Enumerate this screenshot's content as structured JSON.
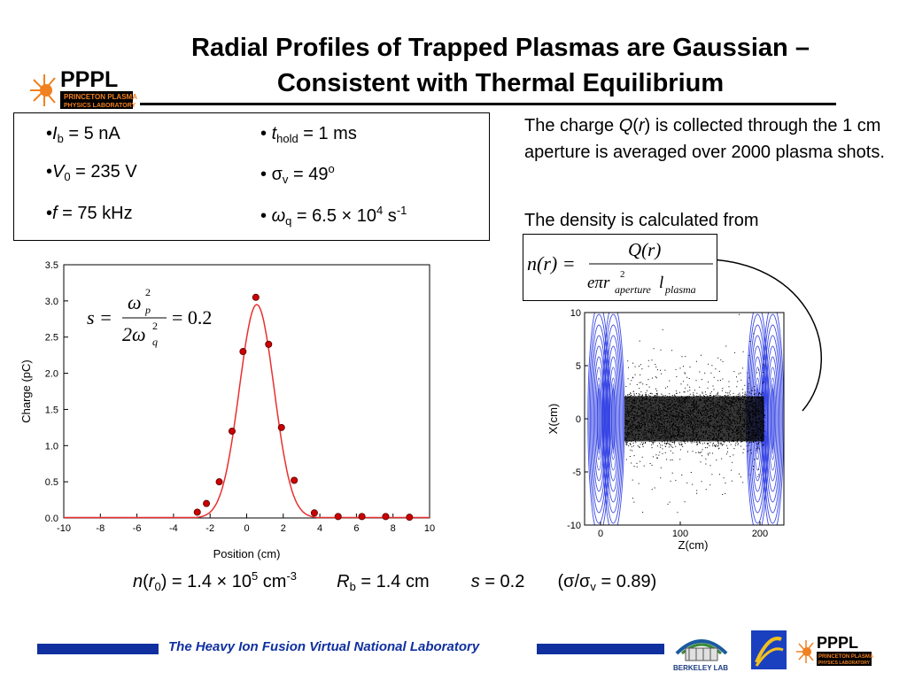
{
  "title_line1": "Radial Profiles of Trapped Plasmas are Gaussian –",
  "title_line2": "Consistent with Thermal Equilibrium",
  "logo": {
    "letters": "PPPL",
    "line1": "PRINCETON PLASMA",
    "line2": "PHYSICS LABORATORY"
  },
  "params": {
    "ib": {
      "bullet": "•",
      "sym": "I",
      "sub": "b",
      "rest": " = 5 nA"
    },
    "v0": {
      "bullet": "•",
      "sym": "V",
      "sub": "0",
      "rest": " = 235 V"
    },
    "f": {
      "bullet": "•",
      "sym": "f",
      "rest": " = 75 kHz"
    },
    "thold": {
      "bullet": "• ",
      "sym": "t",
      "sub": "hold",
      "rest": " = 1 ms"
    },
    "sigv": {
      "bullet": "• ",
      "sym": "σ",
      "sub": "v",
      "rest": " = 49",
      "sup": "o"
    },
    "wq": {
      "bullet": "• ",
      "sym": "ω",
      "sub": "q",
      "rest": " = 6.5 × 10",
      "sup": "4",
      "rest2": " s",
      "sup2": "-1"
    }
  },
  "note1": {
    "a": "The charge ",
    "b": "Q",
    "c": "(",
    "d": "r",
    "e": ") is collected through the 1 cm aperture is averaged over 2000 plasma shots."
  },
  "note2": "The density is calculated from",
  "formula": {
    "lhs": "n(r) =",
    "num": "Q(r)",
    "den_a": "eπr",
    "den_sub": "aperture",
    "den_sup": "2",
    "den_b": "l",
    "den_sub2": "plasma"
  },
  "s_formula": {
    "lhs": "s =",
    "num": "ω",
    "num_sub": "p",
    "num_sup": "2",
    "den": "2ω",
    "den_sub": "q",
    "den_sup": "2",
    "rhs": "= 0.2"
  },
  "chart_data": [
    {
      "type": "scatter",
      "title": "",
      "xlabel": "Position (cm)",
      "ylabel": "Charge (pC)",
      "xlim": [
        -10,
        10
      ],
      "ylim": [
        0,
        3.5
      ],
      "x_ticks": [
        -10,
        -8,
        -6,
        -4,
        -2,
        0,
        2,
        4,
        6,
        8,
        10
      ],
      "y_ticks": [
        0.0,
        0.5,
        1.0,
        1.5,
        2.0,
        2.5,
        3.0,
        3.5
      ],
      "grid": true,
      "points_color": "#cc0000",
      "fit_color": "#e83030",
      "series": [
        {
          "x": [
            -2.7,
            -2.2,
            -1.5,
            -0.8,
            -0.2,
            0.5,
            1.2,
            1.9,
            2.6,
            3.7,
            5.0,
            6.3,
            7.6,
            8.9
          ],
          "y": [
            0.08,
            0.2,
            0.5,
            1.2,
            2.3,
            3.05,
            2.4,
            1.25,
            0.52,
            0.07,
            0.02,
            0.02,
            0.02,
            0.01
          ]
        }
      ],
      "fit": {
        "amplitude": 2.95,
        "center": 0.55,
        "sigma": 0.95
      }
    },
    {
      "type": "scatter",
      "xlabel": "Z(cm)",
      "ylabel": "X(cm)",
      "xlim": [
        -20,
        230
      ],
      "ylim": [
        -10,
        10
      ],
      "x_ticks": [
        0,
        100,
        200
      ],
      "y_ticks": [
        10,
        5,
        0,
        -5,
        -10
      ],
      "grid": false,
      "particle_color": "#000000",
      "contour_color": "#2030e0",
      "particle_region": {
        "z": [
          30,
          205
        ],
        "x_halfwidth": 2.5
      },
      "contour_centers_z": [
        -2,
        16,
        197,
        216
      ]
    }
  ],
  "results": {
    "n_a": "n",
    "n_b": "(",
    "n_c": "r",
    "n_sub": "0",
    "n_d": ") = 1.4 × 10",
    "n_sup": "5",
    "n_e": " cm",
    "n_sup2": "-3",
    "rb_sym": "R",
    "rb_sub": "b",
    "rb_rest": " = 1.4 cm",
    "s_sym": "s",
    "s_rest": " = 0.2",
    "ratio_a": "(σ/σ",
    "ratio_sub": "v",
    "ratio_b": " = 0.89)"
  },
  "footer": "The Heavy Ion Fusion Virtual National Laboratory",
  "berkeley": "BERKELEY LAB",
  "colors": {
    "footer_blue": "#1030a0",
    "logo_orange": "#f08020"
  }
}
